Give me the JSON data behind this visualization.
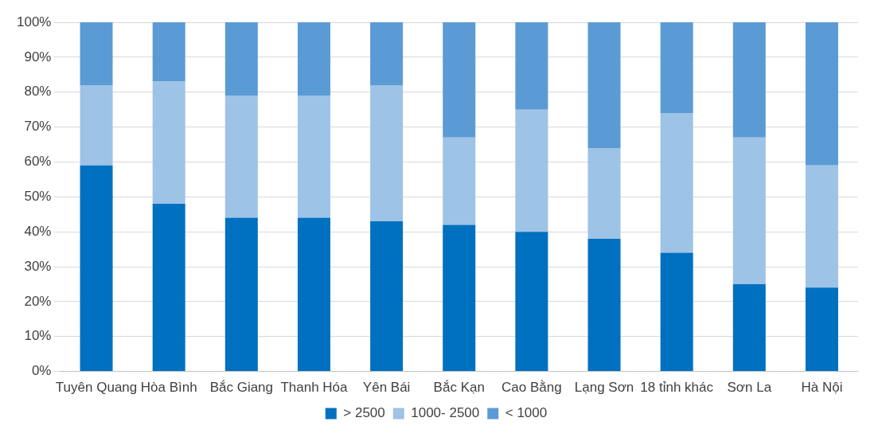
{
  "chart_data": {
    "type": "bar",
    "stacked": true,
    "categories": [
      "Tuyên Quang",
      "Hòa Bình",
      "Bắc Giang",
      "Thanh Hóa",
      "Yên Bái",
      "Bắc Kạn",
      "Cao Bằng",
      "Lạng Sơn",
      "18 tỉnh khác",
      "Sơn La",
      "Hà Nội"
    ],
    "series": [
      {
        "name": "> 2500",
        "color": "#0070c0",
        "values": [
          59,
          48,
          44,
          44,
          43,
          42,
          40,
          38,
          34,
          25,
          24
        ]
      },
      {
        "name": "1000- 2500",
        "color": "#9dc3e6",
        "values": [
          23,
          35,
          35,
          35,
          39,
          25,
          35,
          26,
          40,
          42,
          35
        ]
      },
      {
        "name": "< 1000",
        "color": "#5b9bd5",
        "values": [
          18,
          17,
          21,
          21,
          18,
          33,
          25,
          36,
          26,
          33,
          41
        ]
      }
    ],
    "ylim": [
      0,
      100
    ],
    "yticks": [
      {
        "value": 0,
        "label": "0%"
      },
      {
        "value": 10,
        "label": "10%"
      },
      {
        "value": 20,
        "label": "20%"
      },
      {
        "value": 30,
        "label": "30%"
      },
      {
        "value": 40,
        "label": "40%"
      },
      {
        "value": 50,
        "label": "50%"
      },
      {
        "value": 60,
        "label": "60%"
      },
      {
        "value": 70,
        "label": "70%"
      },
      {
        "value": 80,
        "label": "80%"
      },
      {
        "value": 90,
        "label": "90%"
      },
      {
        "value": 100,
        "label": "100%"
      }
    ],
    "grid": "y",
    "legend": "bottom"
  }
}
